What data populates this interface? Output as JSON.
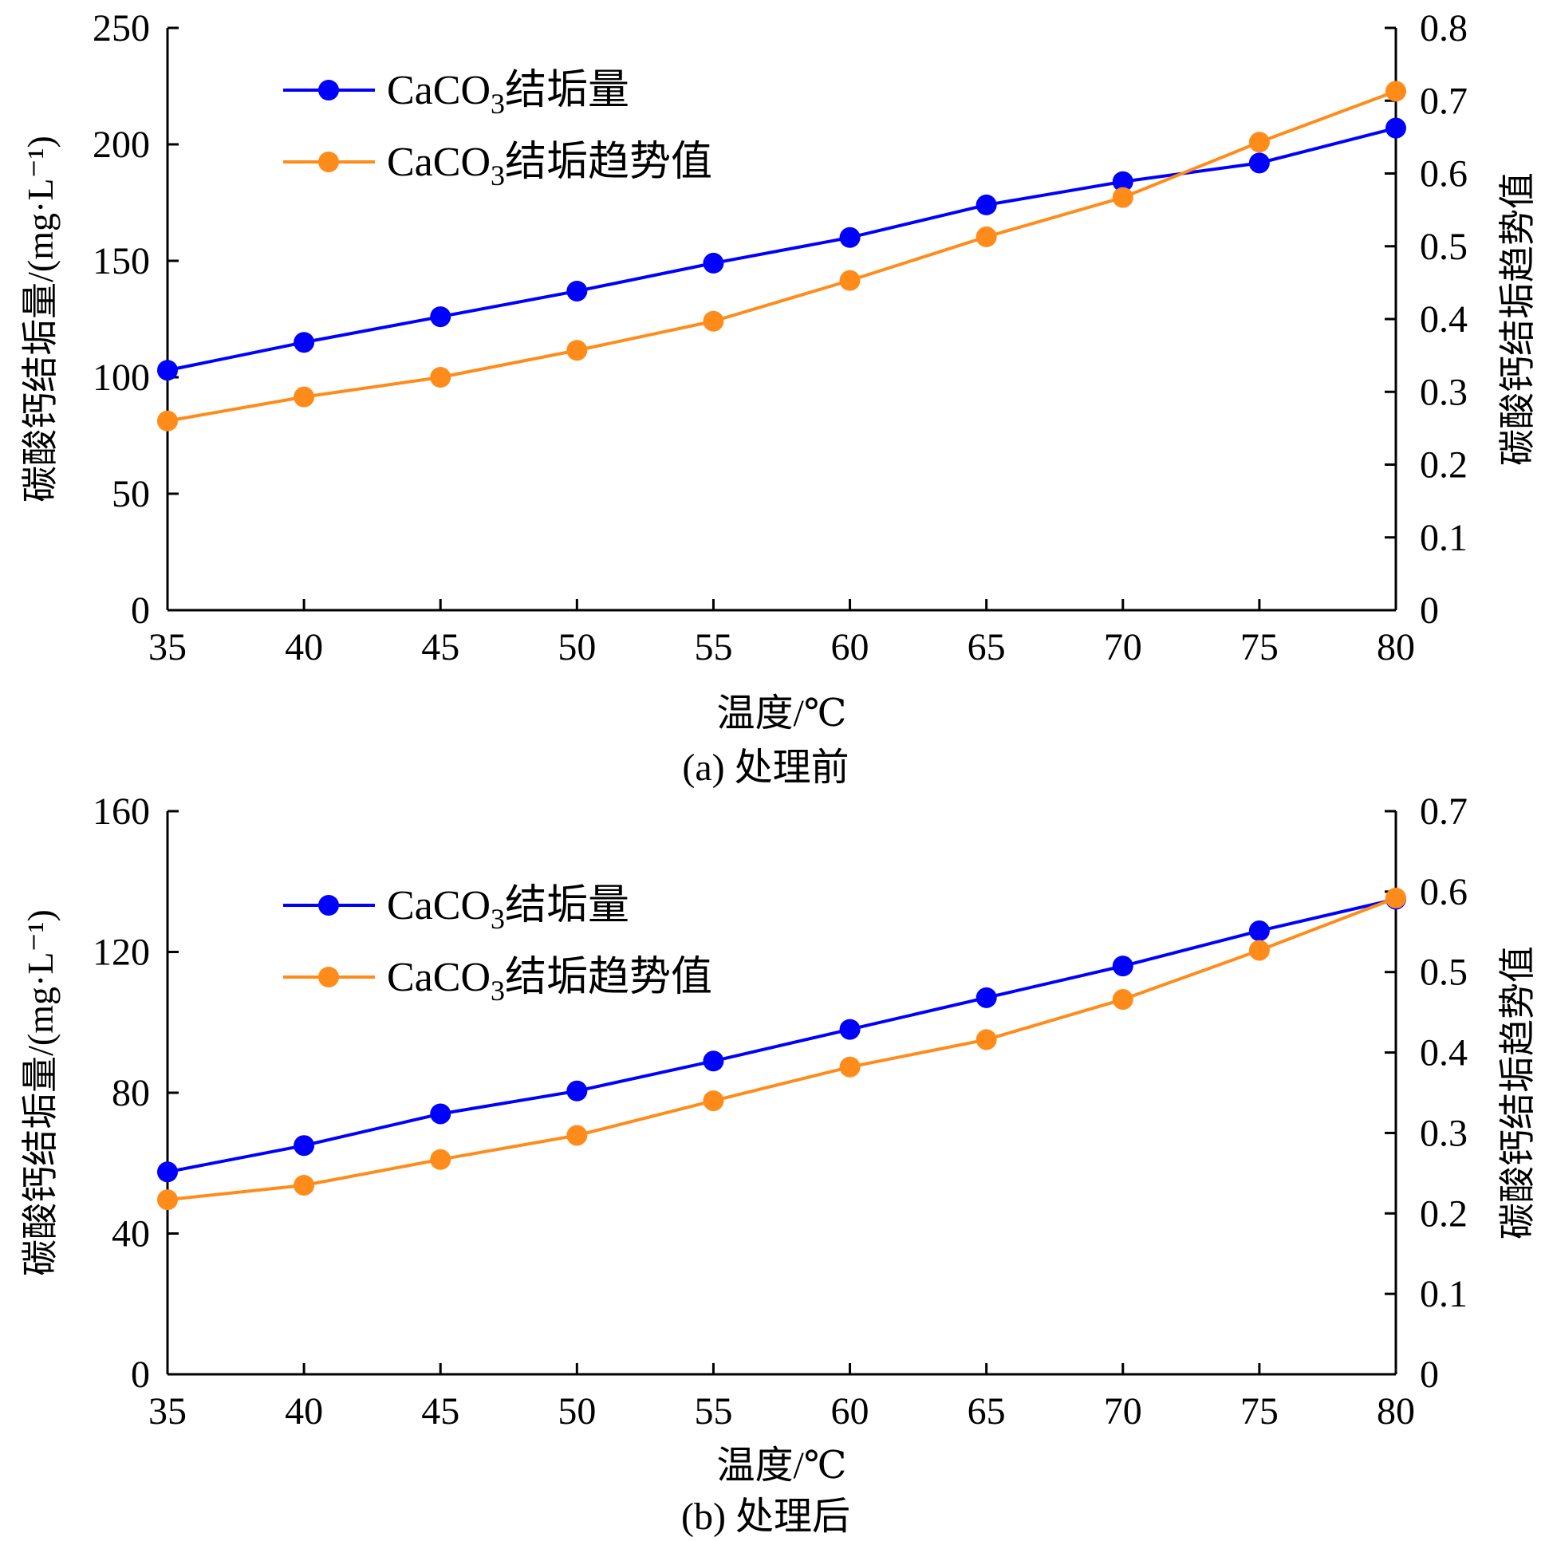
{
  "chart_data": [
    {
      "type": "line",
      "caption": "(a) 处理前",
      "xlabel": "温度/℃",
      "ylabel_left": "碳酸钙结垢量/(mg·L⁻¹)",
      "ylabel_right": "碳酸钙结垢趋势值",
      "x": [
        35,
        40,
        45,
        50,
        55,
        60,
        65,
        70,
        75,
        80
      ],
      "xlim": [
        35,
        80
      ],
      "ylim_left": [
        0,
        250
      ],
      "ylim_right": [
        0,
        0.8
      ],
      "xticks": [
        "35",
        "40",
        "45",
        "50",
        "55",
        "60",
        "65",
        "70",
        "75",
        "80"
      ],
      "yticks_left": [
        "0",
        "50",
        "100",
        "150",
        "200",
        "250"
      ],
      "yticks_right": [
        "0",
        "0.1",
        "0.2",
        "0.3",
        "0.4",
        "0.5",
        "0.6",
        "0.7",
        "0.8"
      ],
      "legend_position": "top-left",
      "series": [
        {
          "name": "CaCO₃结垢量",
          "axis": "left",
          "color": "#0000ff",
          "values": [
            103,
            115,
            126,
            137,
            149,
            160,
            174,
            184,
            192,
            207
          ]
        },
        {
          "name": "CaCO₃结垢趋势值",
          "axis": "right",
          "color": "#ff8c1a",
          "values": [
            0.26,
            0.293,
            0.32,
            0.357,
            0.397,
            0.453,
            0.513,
            0.567,
            0.643,
            0.713
          ]
        }
      ]
    },
    {
      "type": "line",
      "caption": "(b) 处理后",
      "xlabel": "温度/℃",
      "ylabel_left": "碳酸钙结垢量/(mg·L⁻¹)",
      "ylabel_right": "碳酸钙结垢趋势值",
      "x": [
        35,
        40,
        45,
        50,
        55,
        60,
        65,
        70,
        75,
        80
      ],
      "xlim": [
        35,
        80
      ],
      "ylim_left": [
        0,
        160
      ],
      "ylim_right": [
        0,
        0.7
      ],
      "xticks": [
        "35",
        "40",
        "45",
        "50",
        "55",
        "60",
        "65",
        "70",
        "75",
        "80"
      ],
      "yticks_left": [
        "0",
        "40",
        "80",
        "120",
        "160"
      ],
      "yticks_right": [
        "0",
        "0.1",
        "0.2",
        "0.3",
        "0.4",
        "0.5",
        "0.6",
        "0.7"
      ],
      "legend_position": "top-left",
      "series": [
        {
          "name": "CaCO₃结垢量",
          "axis": "left",
          "color": "#0000ff",
          "values": [
            57.5,
            65,
            74,
            80.5,
            89,
            98,
            107,
            116,
            126,
            135
          ]
        },
        {
          "name": "CaCO₃结垢趋势值",
          "axis": "right",
          "color": "#ff8c1a",
          "values": [
            0.217,
            0.235,
            0.267,
            0.297,
            0.34,
            0.382,
            0.416,
            0.466,
            0.527,
            0.592
          ]
        }
      ]
    }
  ]
}
